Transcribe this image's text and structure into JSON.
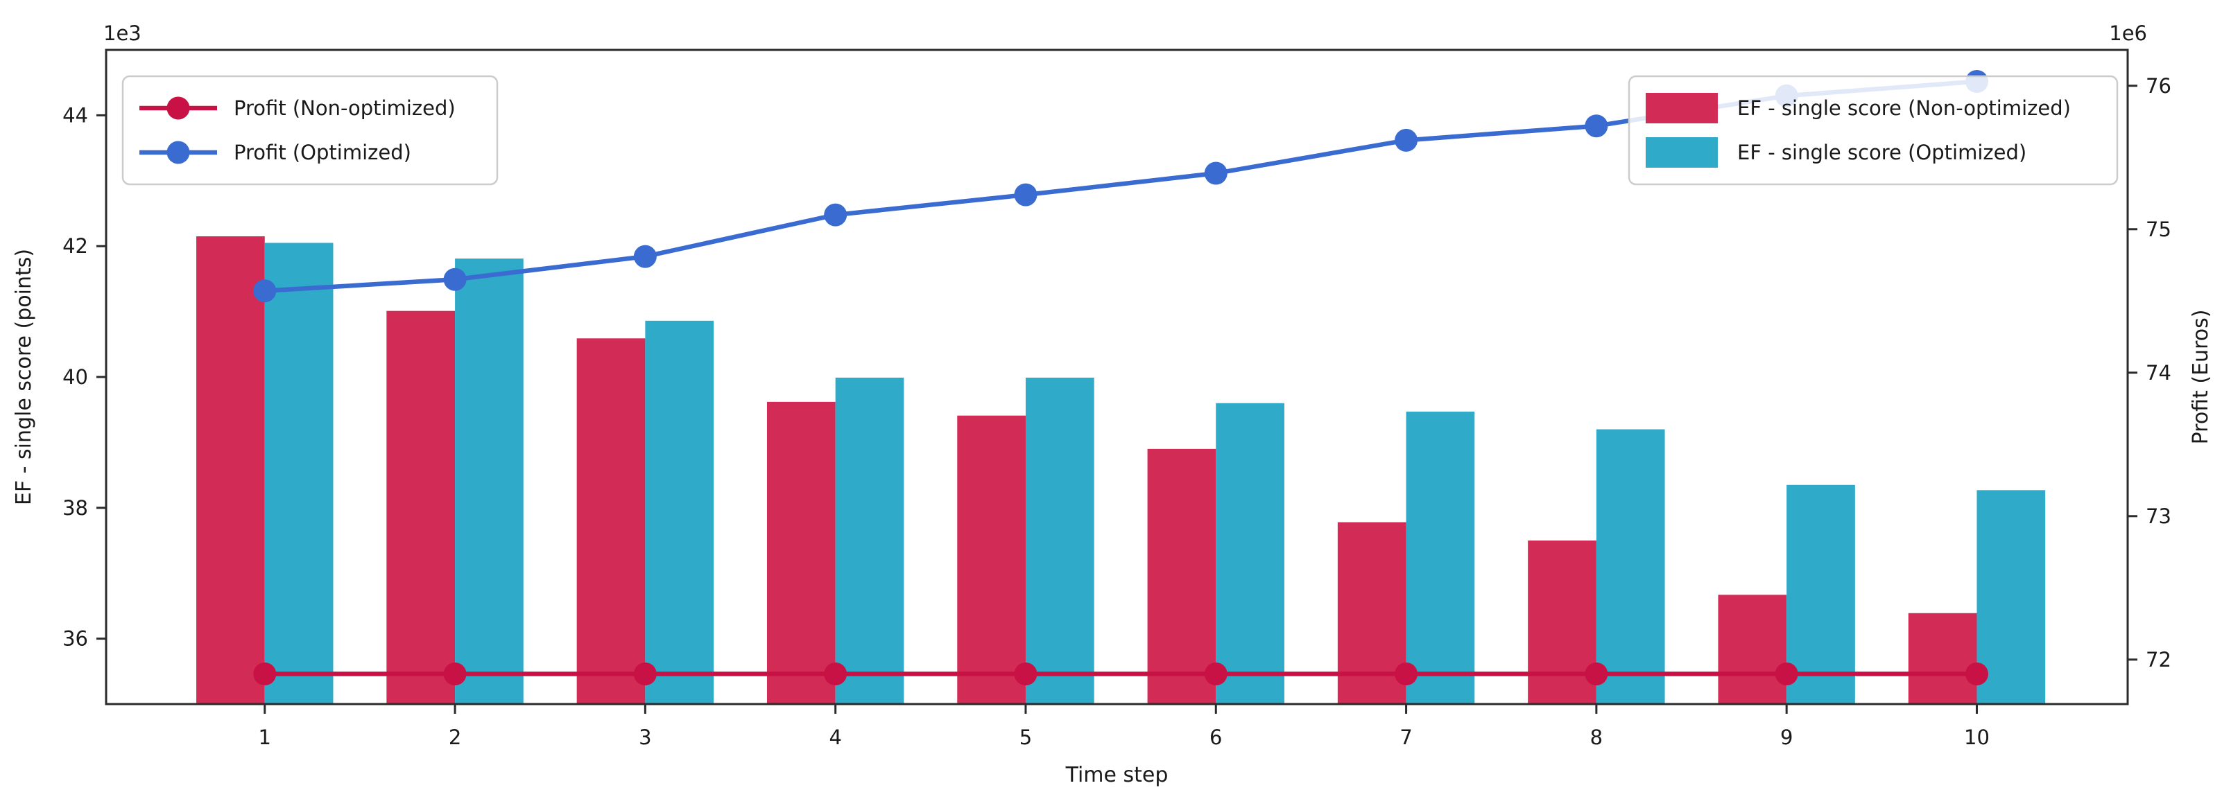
{
  "figure": {
    "background": "#ffffff",
    "spine_color": "#2b2b2b",
    "legend_border_color": "#cccccc"
  },
  "chart_data": {
    "type": "bar+line-dual-axis",
    "title": "",
    "xlabel": "Time step",
    "x": [
      1,
      2,
      3,
      4,
      5,
      6,
      7,
      8,
      9,
      10
    ],
    "x_tick_labels": [
      "1",
      "2",
      "3",
      "4",
      "5",
      "6",
      "7",
      "8",
      "9",
      "10"
    ],
    "xlim": [
      0.166,
      10.793
    ],
    "grid": false,
    "left_axis": {
      "label": "EF - single score (points)",
      "offset_text": "1e3",
      "ticks": [
        36,
        38,
        40,
        42,
        44
      ],
      "lim": [
        35,
        45
      ],
      "multiplier": 1000
    },
    "right_axis": {
      "label": "Profit (Euros)",
      "offset_text": "1e6",
      "ticks": [
        72,
        73,
        74,
        75,
        76
      ],
      "lim": [
        71.69,
        76.25
      ],
      "multiplier": 1000000
    },
    "bar_series": [
      {
        "name": "EF - single score (Non-optimized)",
        "axis": "left",
        "color": "#d22b55",
        "values": [
          42150,
          41010,
          40590,
          39620,
          39410,
          38900,
          37780,
          37500,
          36670,
          36390
        ]
      },
      {
        "name": "EF - single score (Optimized)",
        "axis": "left",
        "color": "#30aac9",
        "values": [
          42050,
          41810,
          40860,
          39990,
          39990,
          39600,
          39470,
          39200,
          38350,
          38270
        ]
      }
    ],
    "line_series": [
      {
        "name": "Profit (Non-optimized)",
        "axis": "right",
        "color": "#c81245",
        "values": [
          71900000,
          71900000,
          71900000,
          71900000,
          71900000,
          71900000,
          71900000,
          71900000,
          71900000,
          71900000
        ]
      },
      {
        "name": "Profit (Optimized)",
        "axis": "right",
        "color": "#3a6bd1",
        "values": [
          74570000,
          74650000,
          74810000,
          75100000,
          75240000,
          75390000,
          75620000,
          75720000,
          75930000,
          76030000
        ]
      }
    ],
    "legends": {
      "top_left": [
        "Profit (Non-optimized)",
        "Profit (Optimized)"
      ],
      "top_right": [
        "EF - single score (Non-optimized)",
        "EF - single score (Optimized)"
      ]
    }
  }
}
